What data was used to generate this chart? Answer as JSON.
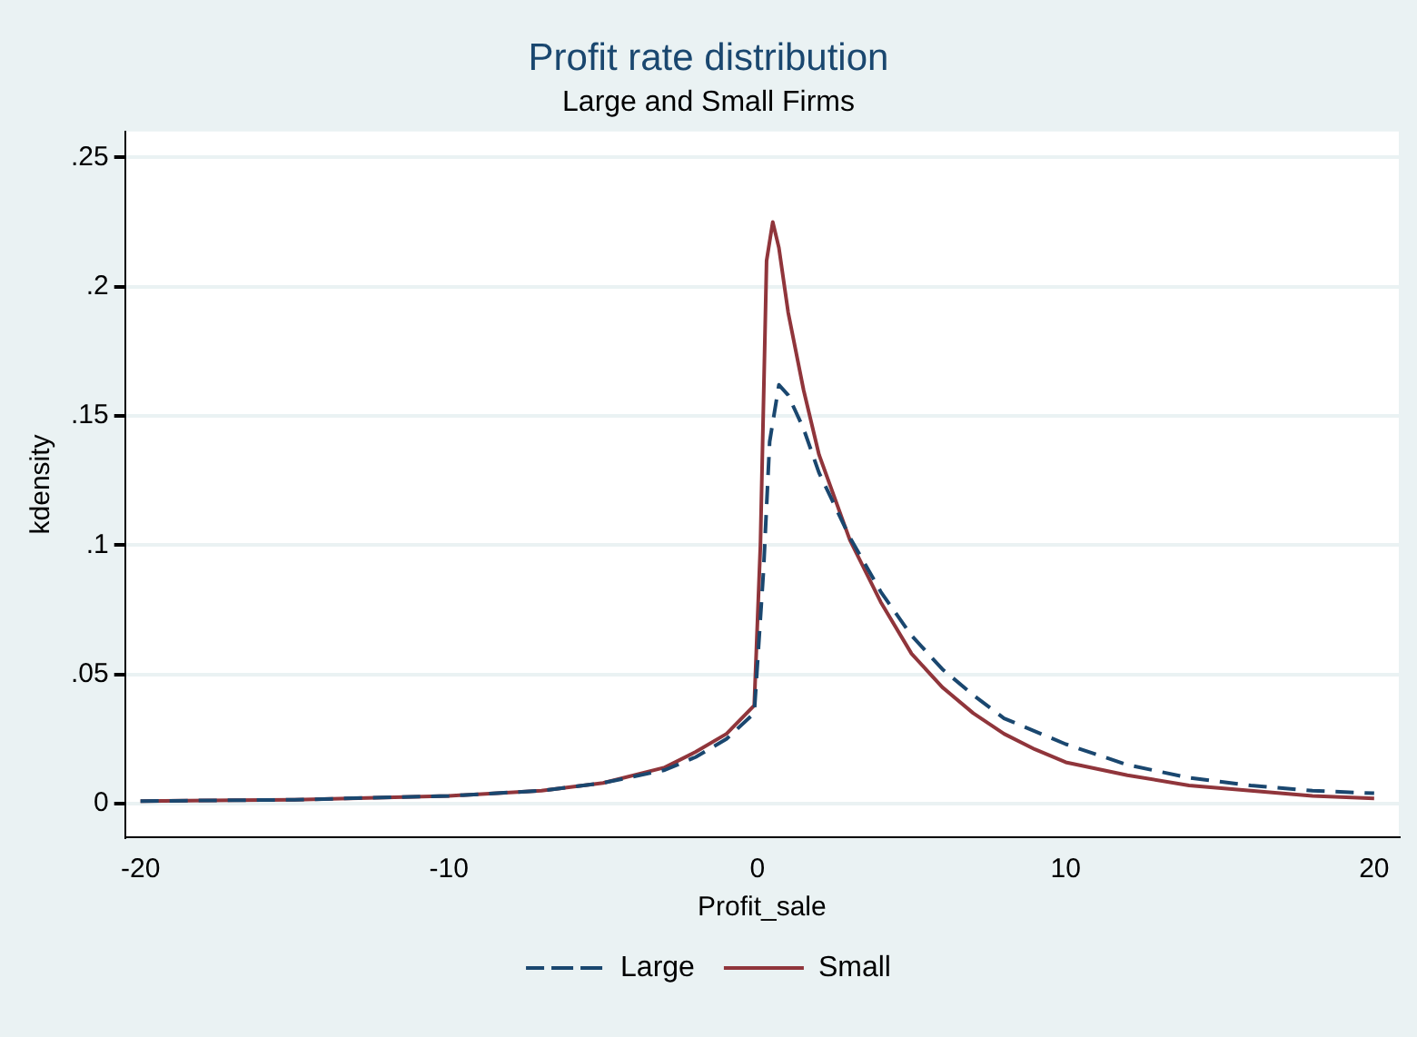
{
  "chart_data": {
    "type": "line",
    "title": "Profit rate distribution",
    "subtitle": "Large and Small Firms",
    "xlabel": "Profit_sale",
    "ylabel": "kdensity",
    "xlim": [
      -20.5,
      20.8
    ],
    "xticks": [
      -20,
      -10,
      0,
      10,
      20
    ],
    "ylim": [
      -0.013,
      0.26
    ],
    "yticks": [
      0,
      {
        "value": 0.05,
        "label": ".05"
      },
      {
        "value": 0.1,
        "label": ".1"
      },
      {
        "value": 0.15,
        "label": ".15"
      },
      {
        "value": 0.2,
        "label": ".2"
      },
      {
        "value": 0.25,
        "label": ".25"
      }
    ],
    "grid": "y",
    "legend": "bottom",
    "marker": "none",
    "series": [
      {
        "name": "Large",
        "color": "#1a476f",
        "line_style": "dashed",
        "x": [
          -20,
          -15,
          -10,
          -7,
          -5,
          -3,
          -2,
          -1,
          -0.1,
          0.2,
          0.4,
          0.7,
          1,
          1.5,
          2,
          3,
          4,
          5,
          6,
          7,
          8,
          10,
          12,
          14,
          16,
          18,
          20
        ],
        "values": [
          0.001,
          0.0015,
          0.003,
          0.005,
          0.008,
          0.013,
          0.018,
          0.025,
          0.035,
          0.09,
          0.14,
          0.162,
          0.158,
          0.145,
          0.128,
          0.103,
          0.082,
          0.065,
          0.052,
          0.042,
          0.033,
          0.023,
          0.015,
          0.01,
          0.007,
          0.005,
          0.004
        ]
      },
      {
        "name": "Small",
        "color": "#90353b",
        "line_style": "solid",
        "x": [
          -20,
          -15,
          -10,
          -7,
          -5,
          -3,
          -2,
          -1,
          -0.1,
          0.1,
          0.3,
          0.5,
          0.7,
          1,
          1.5,
          2,
          3,
          4,
          5,
          6,
          7,
          8,
          9,
          10,
          12,
          14,
          16,
          18,
          20
        ],
        "values": [
          0.001,
          0.0015,
          0.003,
          0.005,
          0.008,
          0.014,
          0.02,
          0.027,
          0.038,
          0.1,
          0.21,
          0.225,
          0.215,
          0.19,
          0.16,
          0.135,
          0.102,
          0.078,
          0.058,
          0.045,
          0.035,
          0.027,
          0.021,
          0.016,
          0.011,
          0.007,
          0.005,
          0.003,
          0.002
        ]
      }
    ]
  }
}
